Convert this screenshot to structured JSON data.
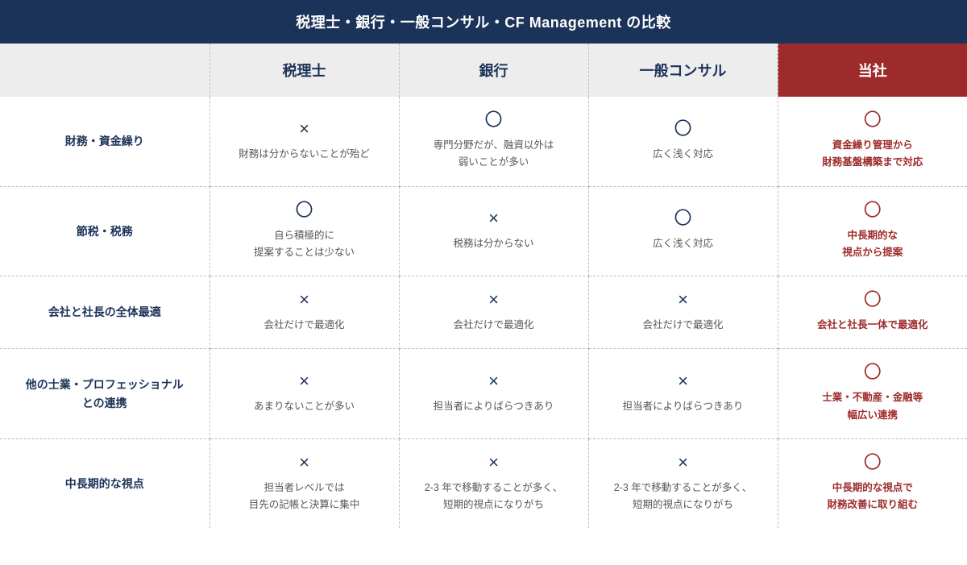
{
  "title": "税理士・銀行・一般コンサル・CF Management の比較",
  "columns": {
    "blank": "",
    "c1": "税理士",
    "c2": "銀行",
    "c3": "一般コンサル",
    "c4": "当社"
  },
  "rows": [
    {
      "label": "財務・資金繰り",
      "c1": {
        "mark": "×",
        "desc": "財務は分からないことが殆ど"
      },
      "c2": {
        "mark": "〇",
        "desc": "専門分野だが、融資以外は\n弱いことが多い"
      },
      "c3": {
        "mark": "〇",
        "desc": "広く浅く対応"
      },
      "c4": {
        "mark": "〇",
        "desc": "資金繰り管理から\n財務基盤構築まで対応"
      }
    },
    {
      "label": "節税・税務",
      "c1": {
        "mark": "〇",
        "desc": "自ら積極的に\n提案することは少ない"
      },
      "c2": {
        "mark": "×",
        "desc": "税務は分からない"
      },
      "c3": {
        "mark": "〇",
        "desc": "広く浅く対応"
      },
      "c4": {
        "mark": "〇",
        "desc": "中長期的な\n視点から提案"
      }
    },
    {
      "label": "会社と社長の全体最適",
      "c1": {
        "mark": "×",
        "desc": "会社だけで最適化"
      },
      "c2": {
        "mark": "×",
        "desc": "会社だけで最適化"
      },
      "c3": {
        "mark": "×",
        "desc": "会社だけで最適化"
      },
      "c4": {
        "mark": "〇",
        "desc": "会社と社長一体で最適化"
      }
    },
    {
      "label": "他の士業・プロフェッショナル\nとの連携",
      "c1": {
        "mark": "×",
        "desc": "あまりないことが多い"
      },
      "c2": {
        "mark": "×",
        "desc": "担当者によりばらつきあり"
      },
      "c3": {
        "mark": "×",
        "desc": "担当者によりばらつきあり"
      },
      "c4": {
        "mark": "〇",
        "desc": "士業・不動産・金融等\n幅広い連携"
      }
    },
    {
      "label": "中長期的な視点",
      "c1": {
        "mark": "×",
        "desc": "担当者レベルでは\n目先の記帳と決算に集中"
      },
      "c2": {
        "mark": "×",
        "desc": "2-3 年で移動することが多く、\n短期的視点になりがち"
      },
      "c3": {
        "mark": "×",
        "desc": "2-3 年で移動することが多く、\n短期的視点になりがち"
      },
      "c4": {
        "mark": "〇",
        "desc": "中長期的な視点で\n財務改善に取り組む"
      }
    }
  ],
  "colors": {
    "header_bg": "#1c3359",
    "highlight_bg": "#9e2b2b",
    "subhead_bg": "#ededed",
    "border": "#bdbdbd",
    "text_dark": "#1c3359",
    "text_body": "#555555"
  }
}
